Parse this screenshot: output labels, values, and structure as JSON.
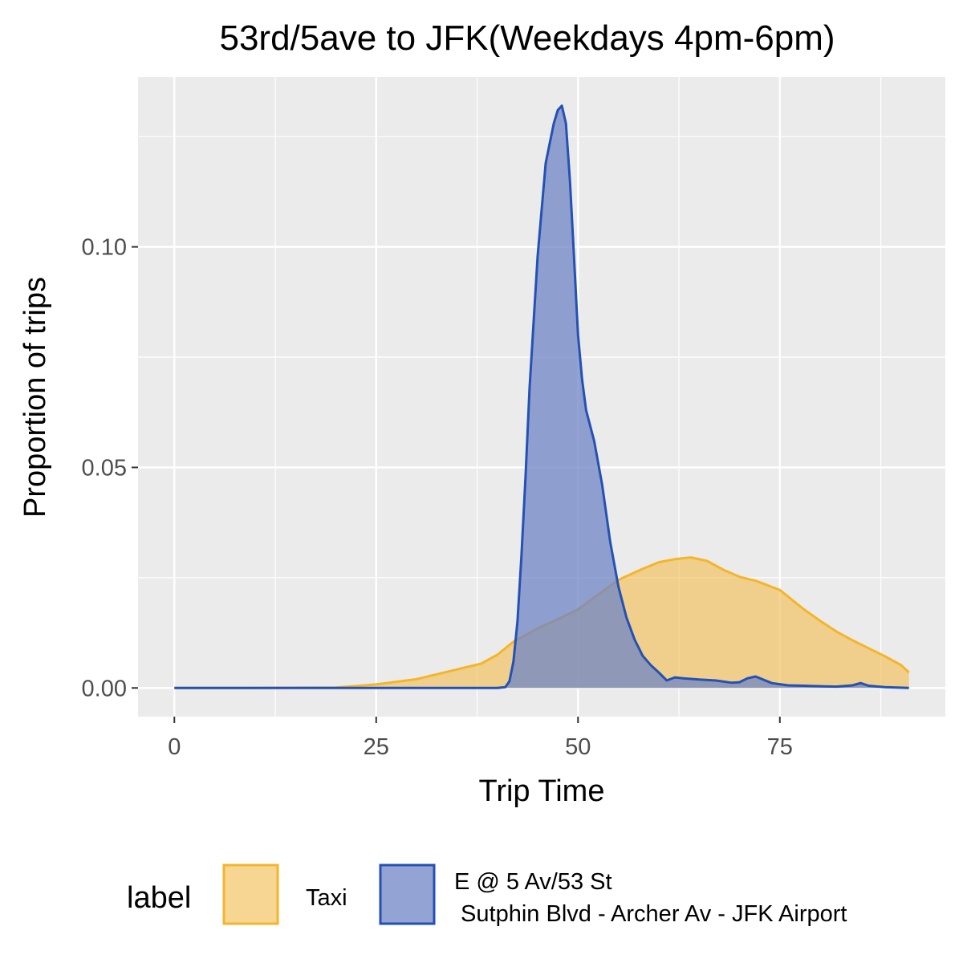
{
  "chart_data": {
    "type": "area",
    "title": "53rd/5ave to JFK(Weekdays 4pm-6pm)",
    "xlabel": "Trip Time",
    "ylabel": "Proportion of trips",
    "xlim": [
      -4.5,
      95.5
    ],
    "ylim": [
      -0.0065,
      0.1385
    ],
    "x_ticks": [
      0,
      25,
      50,
      75
    ],
    "x_tick_labels": [
      "0",
      "25",
      "50",
      "75"
    ],
    "y_ticks": [
      0.0,
      0.05,
      0.1
    ],
    "y_tick_labels": [
      "0.00",
      "0.05",
      "0.10"
    ],
    "grid": true,
    "legend": {
      "title": "label",
      "position": "bottom"
    },
    "series": [
      {
        "name": "Taxi",
        "fill": "#f2c05a",
        "stroke": "#f4b52a",
        "x": [
          0,
          10,
          20,
          25,
          30,
          35,
          38,
          40,
          42,
          45,
          48,
          50,
          52,
          55,
          58,
          60,
          62,
          64,
          66,
          68,
          70,
          72,
          75,
          78,
          80,
          82,
          84,
          86,
          88,
          90,
          91
        ],
        "y": [
          0.0,
          0.0,
          0.0001,
          0.0008,
          0.002,
          0.0042,
          0.0055,
          0.0075,
          0.0105,
          0.0135,
          0.016,
          0.0178,
          0.0205,
          0.0245,
          0.027,
          0.0285,
          0.0292,
          0.0296,
          0.0288,
          0.0268,
          0.0252,
          0.0243,
          0.0222,
          0.0178,
          0.0152,
          0.0128,
          0.0108,
          0.009,
          0.0072,
          0.0052,
          0.0035
        ]
      },
      {
        "name": "E @ 5 Av/53 St\n Sutphin Blvd - Archer Av - JFK Airport",
        "fill": "#6f86c5",
        "stroke": "#2451b4",
        "x": [
          0,
          10,
          20,
          30,
          40,
          41,
          41.5,
          42,
          42.5,
          43,
          43.5,
          44,
          45,
          46,
          47,
          47.5,
          48,
          48.5,
          49,
          49.5,
          50,
          50.5,
          51,
          52,
          53,
          54,
          55,
          56,
          57,
          58,
          59,
          60,
          61,
          62,
          63,
          65,
          67,
          69,
          70,
          71,
          72,
          74,
          76,
          78,
          80,
          82,
          84,
          85,
          86,
          88,
          91
        ],
        "y": [
          0.0,
          0.0,
          0.0,
          0.0,
          0.0,
          0.0002,
          0.0015,
          0.006,
          0.015,
          0.03,
          0.048,
          0.068,
          0.098,
          0.119,
          0.128,
          0.131,
          0.132,
          0.128,
          0.115,
          0.098,
          0.08,
          0.07,
          0.063,
          0.056,
          0.046,
          0.033,
          0.023,
          0.016,
          0.011,
          0.0073,
          0.0052,
          0.0035,
          0.0017,
          0.0024,
          0.0022,
          0.0019,
          0.0017,
          0.0012,
          0.0013,
          0.0022,
          0.0026,
          0.0011,
          0.0006,
          0.0005,
          0.0004,
          0.0003,
          0.0006,
          0.0011,
          0.0005,
          0.0002,
          0.0
        ]
      }
    ]
  }
}
